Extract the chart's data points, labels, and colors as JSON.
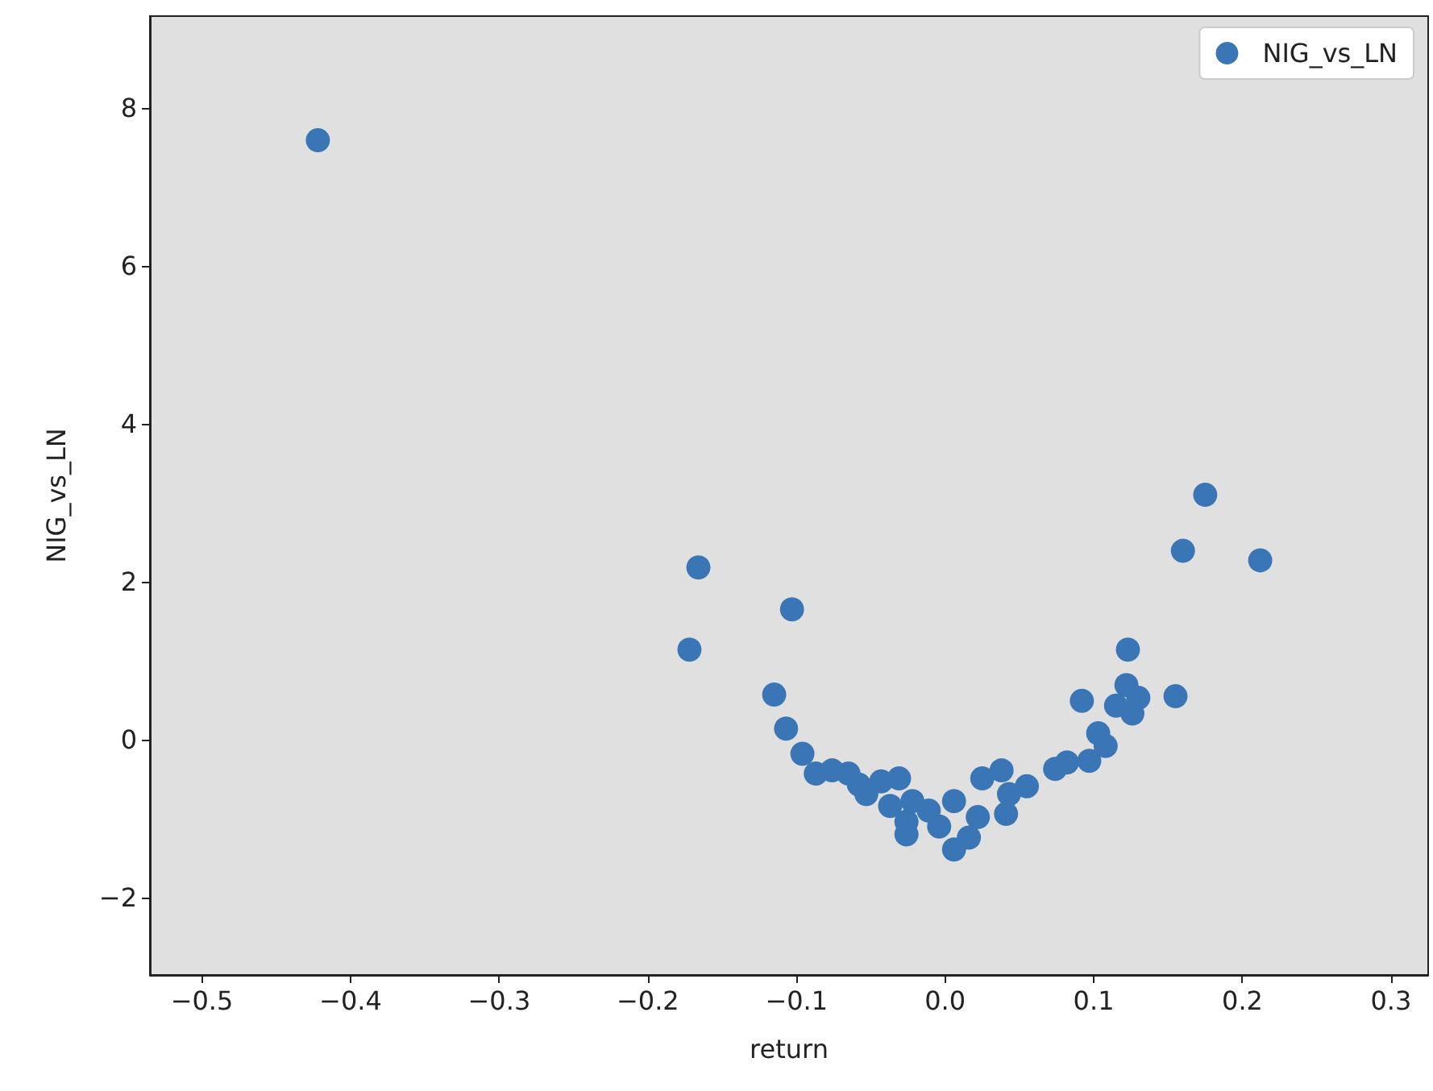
{
  "chart_data": {
    "type": "scatter",
    "xlabel": "return",
    "ylabel": "NIG_vs_LN",
    "marker": "circle",
    "legend": "top right",
    "grid": false,
    "xlim": [
      -0.535,
      0.325
    ],
    "ylim": [
      -2.98,
      9.16
    ],
    "xticks": [
      {
        "value": -0.5,
        "label": "−0.5"
      },
      {
        "value": -0.4,
        "label": "−0.4"
      },
      {
        "value": -0.3,
        "label": "−0.3"
      },
      {
        "value": -0.2,
        "label": "−0.2"
      },
      {
        "value": -0.1,
        "label": "−0.1"
      },
      {
        "value": 0,
        "label": "0.0"
      },
      0.1,
      0.2,
      0.3
    ],
    "yticks": [
      {
        "value": -2,
        "label": "−2"
      },
      0,
      2,
      4,
      6,
      8
    ],
    "series": [
      {
        "name": "NIG_vs_LN",
        "color": "#3a76b5",
        "x": [
          -0.422,
          -0.166,
          -0.172,
          -0.103,
          -0.115,
          -0.107,
          0.175,
          0.16,
          0.212,
          0.123,
          0.155,
          0.092,
          0.122,
          0.13,
          0.115,
          0.126,
          0.103,
          0.108,
          0.097,
          0.082,
          0.074,
          0.055,
          0.038,
          0.043,
          0.041,
          0.025,
          0.006,
          0.022,
          0.016,
          0.006,
          -0.004,
          -0.016,
          -0.026,
          -0.022,
          -0.031,
          -0.043,
          -0.037,
          -0.053,
          -0.065,
          -0.076,
          -0.087,
          -0.096,
          -0.058,
          -0.011,
          -0.026
        ],
        "values": [
          7.59,
          2.18,
          1.14,
          1.65,
          0.57,
          0.14,
          3.1,
          2.39,
          2.27,
          1.14,
          0.55,
          0.49,
          0.69,
          0.53,
          0.43,
          0.33,
          0.08,
          -0.08,
          -0.27,
          -0.29,
          -0.37,
          -0.59,
          -0.39,
          -0.69,
          -0.94,
          -0.49,
          -0.78,
          -0.98,
          -1.24,
          -1.39,
          -1.1,
          null,
          -1.2,
          -0.78,
          -0.49,
          -0.53,
          -0.84,
          -0.69,
          -0.43,
          -0.39,
          -0.43,
          -0.18,
          -0.57,
          -0.9,
          -1.04
        ]
      }
    ]
  }
}
